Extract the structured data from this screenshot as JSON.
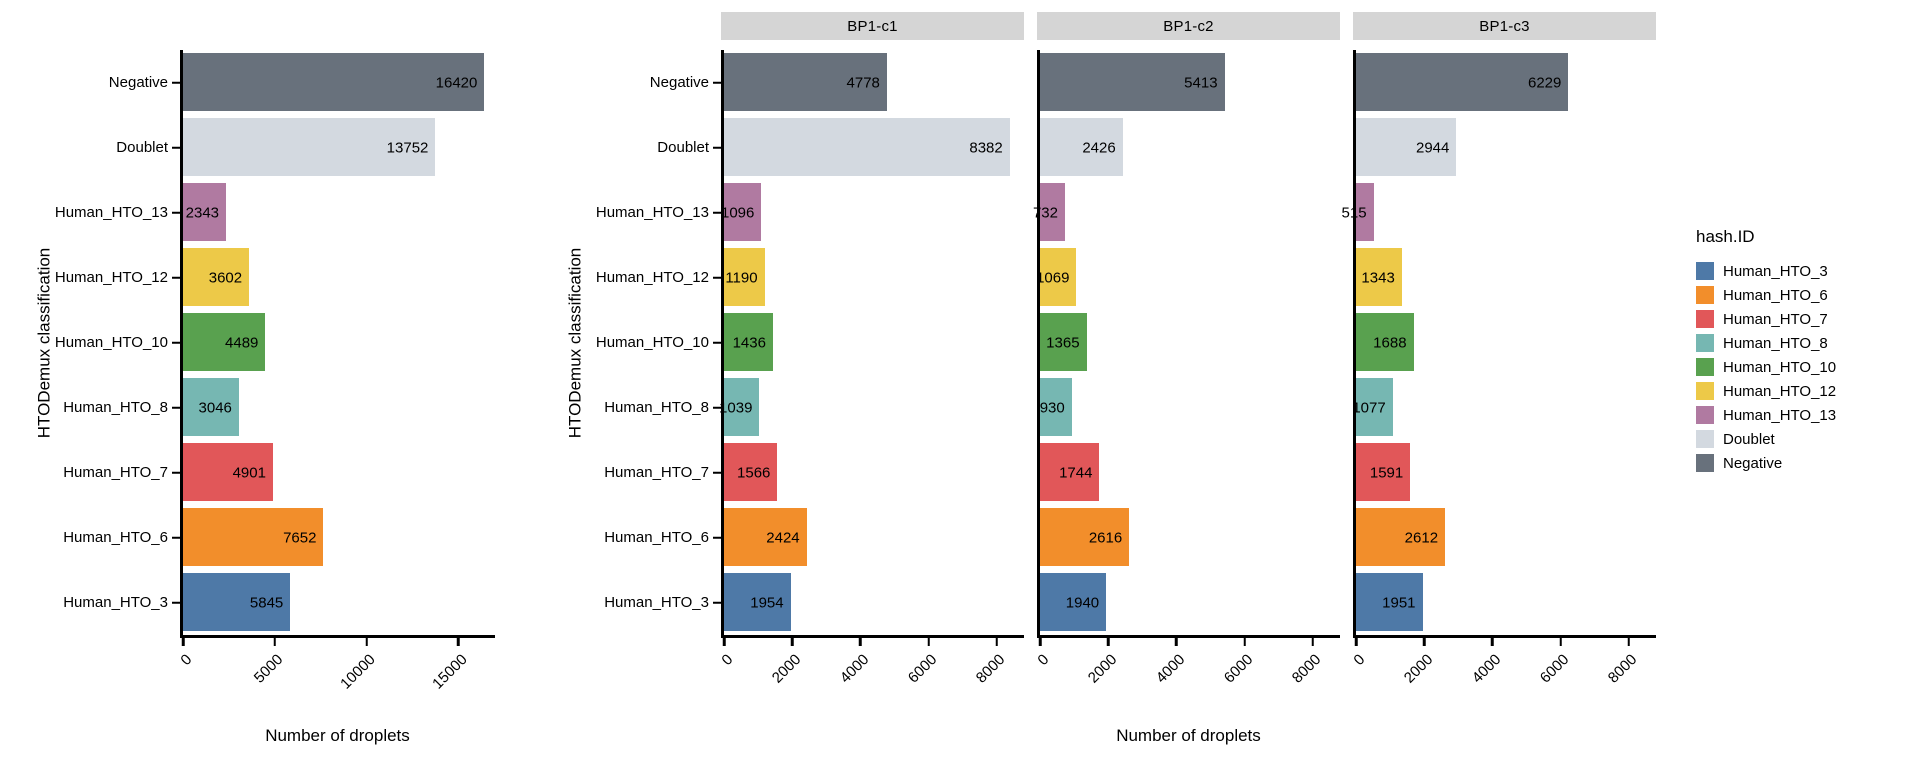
{
  "legend": {
    "title": "hash.ID",
    "entries": [
      {
        "label": "Human_HTO_3",
        "color": "#4E79A7"
      },
      {
        "label": "Human_HTO_6",
        "color": "#F28E2B"
      },
      {
        "label": "Human_HTO_7",
        "color": "#E15759"
      },
      {
        "label": "Human_HTO_8",
        "color": "#76B7B2"
      },
      {
        "label": "Human_HTO_10",
        "color": "#59A14F"
      },
      {
        "label": "Human_HTO_12",
        "color": "#EDC948"
      },
      {
        "label": "Human_HTO_13",
        "color": "#B07AA1"
      },
      {
        "label": "Doublet",
        "color": "#D3D9E0"
      },
      {
        "label": "Negative",
        "color": "#68717C"
      }
    ]
  },
  "style": {
    "strip_background": "#D5D5D5",
    "axis_color": "#000000",
    "category_colors": {
      "Negative": "#68717C",
      "Doublet": "#D3D9E0",
      "Human_HTO_13": "#B07AA1",
      "Human_HTO_12": "#EDC948",
      "Human_HTO_10": "#59A14F",
      "Human_HTO_8": "#76B7B2",
      "Human_HTO_7": "#E15759",
      "Human_HTO_6": "#F28E2B",
      "Human_HTO_3": "#4E79A7"
    }
  },
  "chart_data": [
    {
      "type": "bar",
      "orientation": "horizontal",
      "title": "",
      "xlabel": "Number of droplets",
      "ylabel": "HTODemux classification",
      "categories": [
        "Negative",
        "Doublet",
        "Human_HTO_13",
        "Human_HTO_12",
        "Human_HTO_10",
        "Human_HTO_8",
        "Human_HTO_7",
        "Human_HTO_6",
        "Human_HTO_3"
      ],
      "values": [
        16420,
        13752,
        2343,
        3602,
        4489,
        3046,
        4901,
        7652,
        5845
      ],
      "value_labels_shown": true,
      "xlim": [
        0,
        17000
      ],
      "xticks": [
        0,
        5000,
        10000,
        15000
      ],
      "grid": false
    },
    {
      "type": "bar",
      "orientation": "horizontal",
      "faceted": true,
      "title": "",
      "xlabel": "Number of droplets",
      "ylabel": "HTODemux classification",
      "categories": [
        "Negative",
        "Doublet",
        "Human_HTO_13",
        "Human_HTO_12",
        "Human_HTO_10",
        "Human_HTO_8",
        "Human_HTO_7",
        "Human_HTO_6",
        "Human_HTO_3"
      ],
      "series": [
        {
          "name": "BP1-c1",
          "values": [
            4778,
            8382,
            1096,
            1190,
            1436,
            1039,
            1566,
            2424,
            1954
          ]
        },
        {
          "name": "BP1-c2",
          "values": [
            5413,
            2426,
            732,
            1069,
            1365,
            930,
            1744,
            2616,
            1940
          ]
        },
        {
          "name": "BP1-c3",
          "values": [
            6229,
            2944,
            515,
            1343,
            1688,
            1077,
            1591,
            2612,
            1951
          ]
        }
      ],
      "value_labels_shown": true,
      "xlim": [
        0,
        8800
      ],
      "xticks": [
        0,
        2000,
        4000,
        6000,
        8000
      ],
      "grid": false
    }
  ]
}
